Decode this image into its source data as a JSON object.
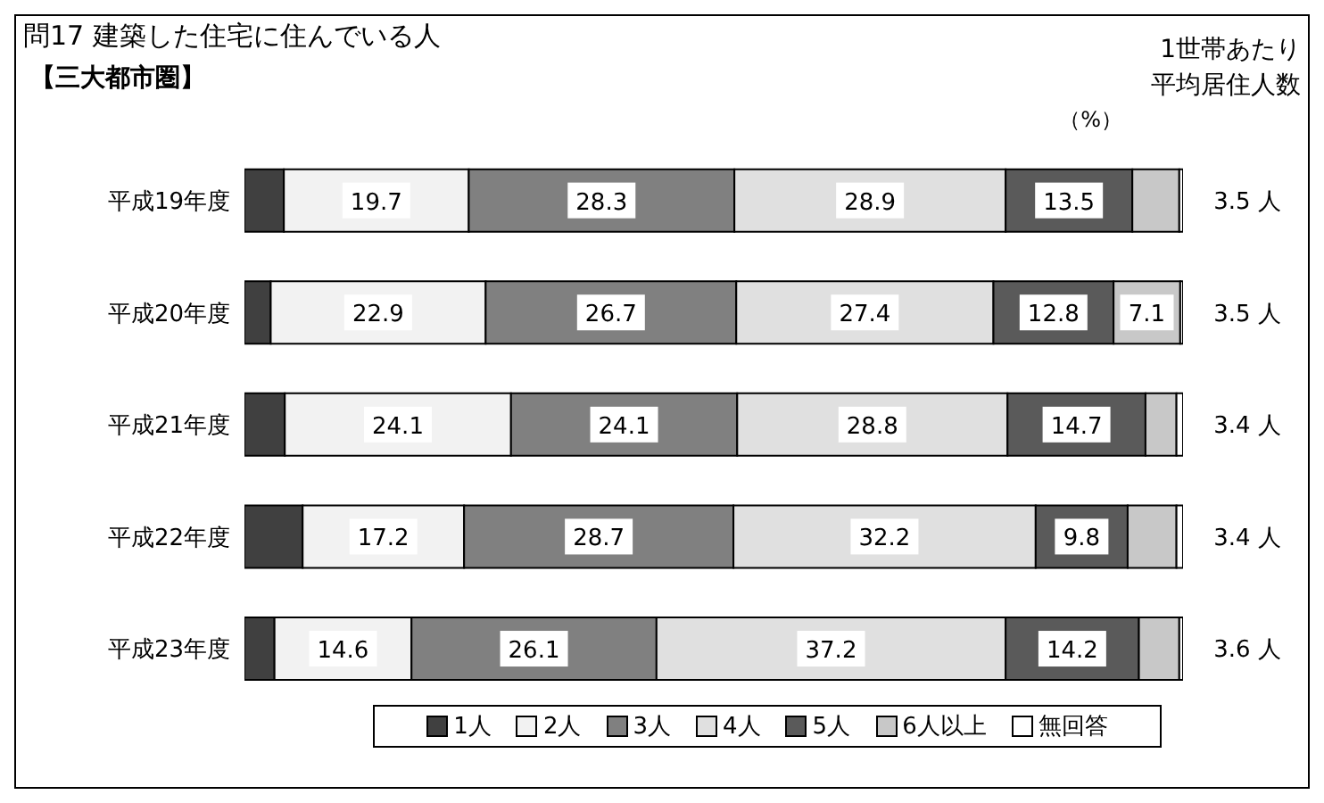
{
  "chart_data": {
    "type": "bar",
    "orientation": "horizontal",
    "stacked": true,
    "title": "問17 建築した住宅に住んでいる人",
    "subtitle": "【三大都市圏】",
    "categories": [
      "平成19年度",
      "平成20年度",
      "平成21年度",
      "平成22年度",
      "平成23年度"
    ],
    "xlim": [
      0,
      100
    ],
    "tick_labels": "y",
    "legend": "bottom",
    "grid": false,
    "series": [
      {
        "name": "1人",
        "color": "#404040",
        "values": [
          4.2,
          2.8,
          4.3,
          6.2,
          3.2
        ]
      },
      {
        "name": "2人",
        "color": "#f2f2f2",
        "values": [
          19.7,
          22.9,
          24.1,
          17.2,
          14.6
        ],
        "value_labels": [
          "19.7",
          "22.9",
          "24.1",
          "17.2",
          "14.6"
        ]
      },
      {
        "name": "3人",
        "color": "#808080",
        "values": [
          28.3,
          26.7,
          24.1,
          28.7,
          26.1
        ],
        "value_labels": [
          "28.3",
          "26.7",
          "24.1",
          "28.7",
          "26.1"
        ]
      },
      {
        "name": "4人",
        "color": "#e0e0e0",
        "values": [
          28.9,
          27.4,
          28.8,
          32.2,
          37.2
        ],
        "value_labels": [
          "28.9",
          "27.4",
          "28.8",
          "32.2",
          "37.2"
        ]
      },
      {
        "name": "5人",
        "color": "#5a5a5a",
        "values": [
          13.5,
          12.8,
          14.7,
          9.8,
          14.2
        ],
        "value_labels": [
          "13.5",
          "12.8",
          "14.7",
          "9.8",
          "14.2"
        ]
      },
      {
        "name": "6人以上",
        "color": "#c8c8c8",
        "values": [
          5.0,
          7.1,
          3.3,
          5.2,
          4.3
        ],
        "value_labels": [
          null,
          "7.1",
          null,
          null,
          null
        ]
      },
      {
        "name": "無回答",
        "color": "#ffffff",
        "values": [
          0.4,
          0.3,
          0.7,
          0.7,
          0.4
        ]
      }
    ],
    "annotations": [
      "1世帯あたり",
      "平均居住人数",
      "（%）",
      "3.5 人",
      "3.5 人",
      "3.4 人",
      "3.4 人",
      "3.6 人"
    ]
  }
}
